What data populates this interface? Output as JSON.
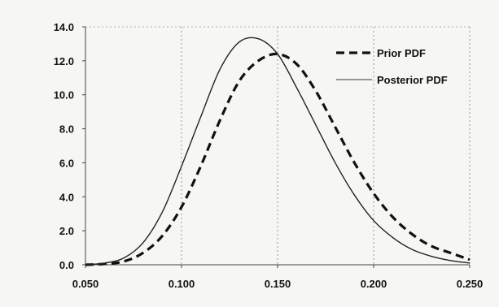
{
  "chart_data": {
    "type": "line",
    "title": "",
    "xlabel": "",
    "ylabel": "",
    "xlim": [
      0.05,
      0.25
    ],
    "ylim": [
      0,
      14
    ],
    "x_ticks": [
      "0.050",
      "0.100",
      "0.150",
      "0.200",
      "0.250"
    ],
    "y_ticks": [
      "0.0",
      "2.0",
      "4.0",
      "6.0",
      "8.0",
      "10.0",
      "12.0",
      "14.0"
    ],
    "grid": "vertical",
    "legend": "top-right",
    "series": [
      {
        "name": "Prior  PDF",
        "style": "dashed",
        "color": "#111111",
        "x": [
          0.05,
          0.06,
          0.07,
          0.08,
          0.09,
          0.1,
          0.11,
          0.12,
          0.13,
          0.14,
          0.15,
          0.16,
          0.17,
          0.18,
          0.19,
          0.2,
          0.21,
          0.22,
          0.23,
          0.24,
          0.25
        ],
        "y": [
          0.0,
          0.05,
          0.2,
          0.7,
          1.7,
          3.4,
          5.8,
          8.5,
          10.8,
          12.0,
          12.4,
          11.8,
          10.2,
          8.1,
          6.0,
          4.2,
          2.8,
          1.8,
          1.1,
          0.7,
          0.3
        ]
      },
      {
        "name": "Posterior  PDF",
        "style": "solid",
        "color": "#222222",
        "x": [
          0.05,
          0.06,
          0.07,
          0.08,
          0.09,
          0.1,
          0.11,
          0.12,
          0.13,
          0.14,
          0.15,
          0.16,
          0.17,
          0.18,
          0.19,
          0.2,
          0.21,
          0.22,
          0.23,
          0.24,
          0.25
        ],
        "y": [
          0.0,
          0.1,
          0.4,
          1.3,
          3.1,
          5.8,
          8.7,
          11.5,
          13.1,
          13.3,
          12.4,
          10.4,
          8.2,
          6.0,
          4.1,
          2.6,
          1.6,
          0.9,
          0.5,
          0.25,
          0.1
        ]
      }
    ]
  }
}
